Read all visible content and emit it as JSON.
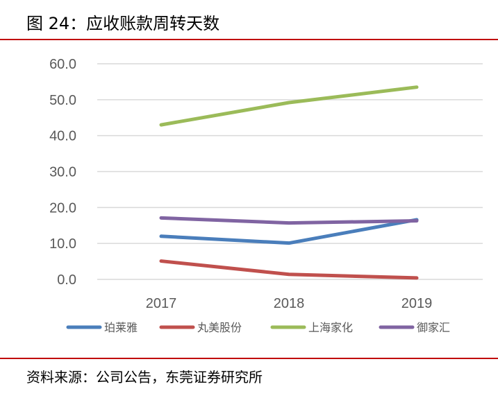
{
  "title": "图 24：应收账款周转天数",
  "source": "资料来源：公司公告，东莞证券研究所",
  "chart_data": {
    "type": "line",
    "title": "",
    "xlabel": "",
    "ylabel": "",
    "categories": [
      "2017",
      "2018",
      "2019"
    ],
    "ylim": [
      0,
      60
    ],
    "yticks": [
      "0.0",
      "10.0",
      "20.0",
      "30.0",
      "40.0",
      "50.0",
      "60.0"
    ],
    "grid": true,
    "legend_position": "bottom",
    "series": [
      {
        "name": "珀莱雅",
        "color": "#4a7ebb",
        "values": [
          12.0,
          10.1,
          16.6
        ]
      },
      {
        "name": "丸美股份",
        "color": "#c0504d",
        "values": [
          5.1,
          1.4,
          0.4
        ]
      },
      {
        "name": "上海家化",
        "color": "#9bbb59",
        "values": [
          43.0,
          49.2,
          53.5
        ]
      },
      {
        "name": "御家汇",
        "color": "#8064a2",
        "values": [
          17.1,
          15.7,
          16.3
        ]
      }
    ]
  }
}
